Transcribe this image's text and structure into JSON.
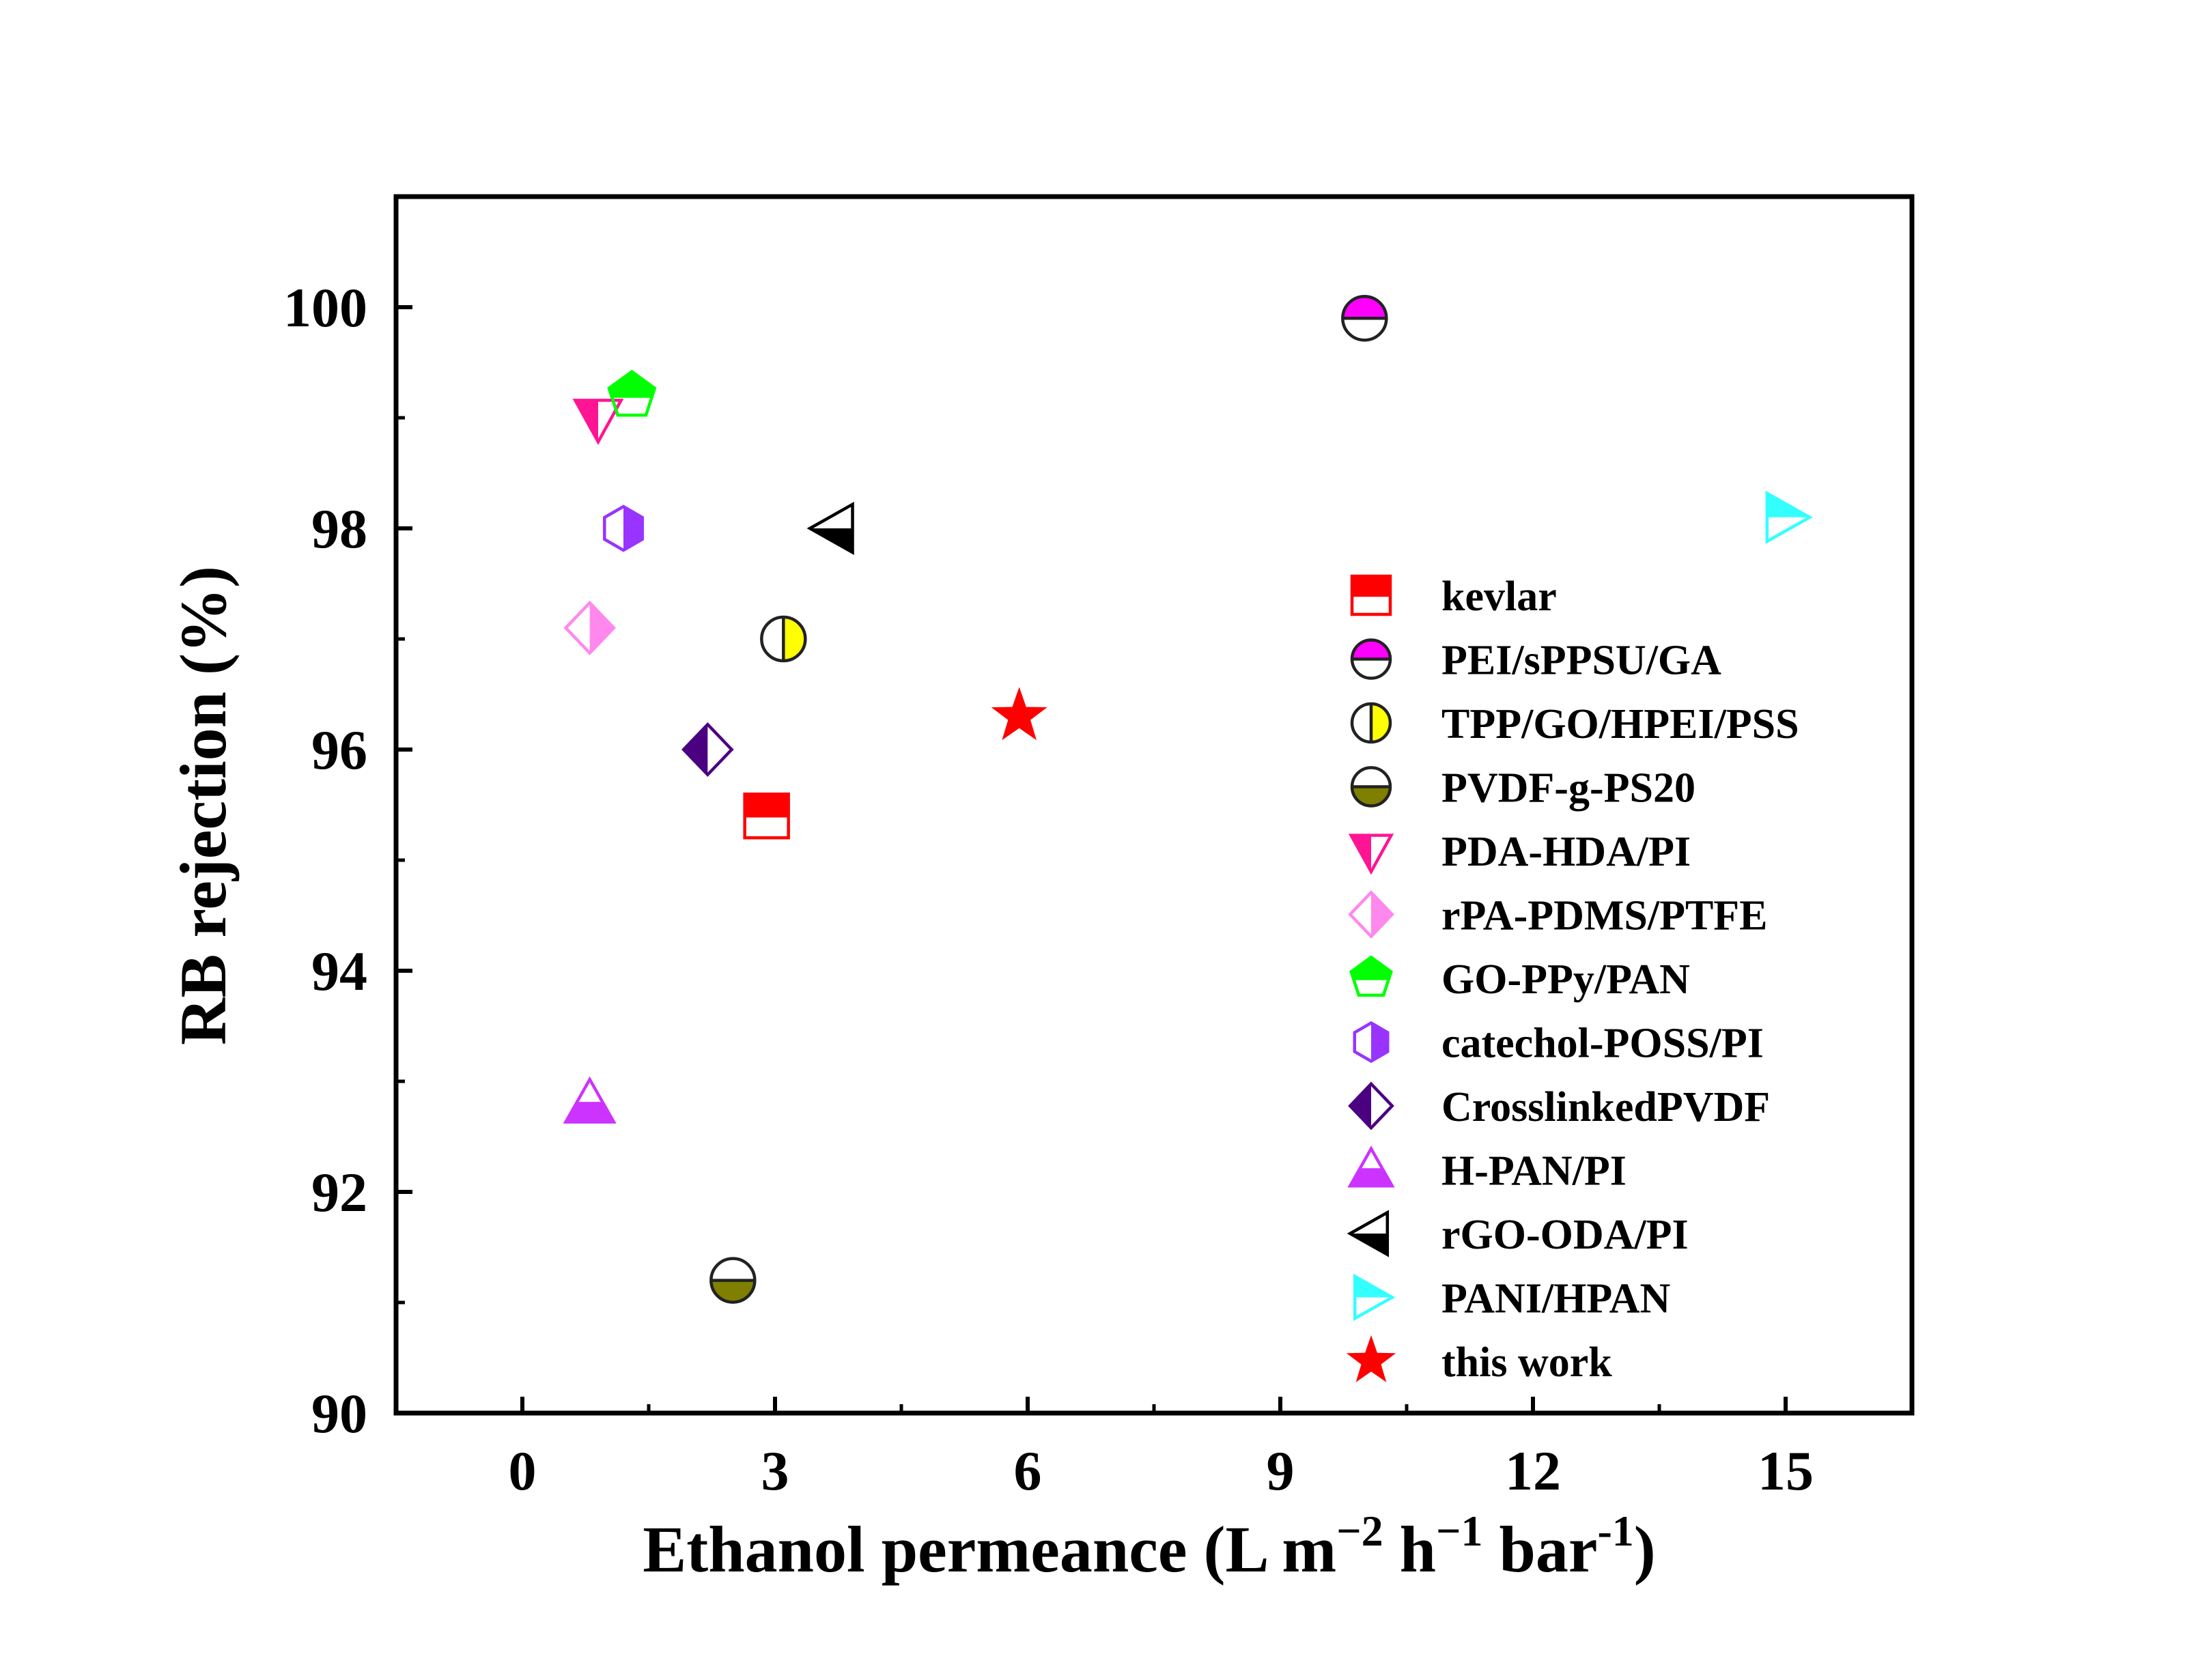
{
  "chart_data": {
    "type": "scatter",
    "xlabel": "Ethanol permeance (L m−2 h−1 bar-1)",
    "xlabel_parts": {
      "main": "Ethanol permeance (L m",
      "sup1": "−2",
      "mid1": " h",
      "sup2": "−1",
      "mid2": " bar",
      "sup3": "-1",
      "end": ")"
    },
    "ylabel": "RB rejection (%)",
    "xlim": [
      -1.5,
      16.5
    ],
    "ylim": [
      90,
      101
    ],
    "xticks": [
      {
        "value": 0,
        "label": "0"
      },
      {
        "value": 3,
        "label": "3"
      },
      {
        "value": 6,
        "label": "6"
      },
      {
        "value": 9,
        "label": "9"
      },
      {
        "value": 12,
        "label": "12"
      },
      {
        "value": 15,
        "label": "15"
      }
    ],
    "yticks": [
      {
        "value": 90,
        "label": "90"
      },
      {
        "value": 92,
        "label": "92"
      },
      {
        "value": 94,
        "label": "94"
      },
      {
        "value": 96,
        "label": "96"
      },
      {
        "value": 98,
        "label": "98"
      },
      {
        "value": 100,
        "label": "100"
      }
    ],
    "grid": false,
    "legend_position": "right",
    "series": [
      {
        "name": "kevlar",
        "marker": "square-top",
        "color": "#ff0000",
        "x": 2.9,
        "y": 95.4
      },
      {
        "name": "PEI/sPPSU/GA",
        "marker": "circle-top",
        "color": "#ff00ff",
        "x": 10.0,
        "y": 99.9
      },
      {
        "name": "TPP/GO/HPEI/PSS",
        "marker": "circle-right",
        "color": "#ffff00",
        "x": 3.1,
        "y": 97.0
      },
      {
        "name": "PVDF-g-PS20",
        "marker": "circle-bottom",
        "color": "#808000",
        "x": 2.5,
        "y": 91.2
      },
      {
        "name": "PDA-HDA/PI",
        "marker": "triangle-down-left",
        "color": "#ff1493",
        "x": 0.9,
        "y": 99.0
      },
      {
        "name": "rPA-PDMS/PTFE",
        "marker": "diamond-right",
        "color": "#ff88ee",
        "x": 0.8,
        "y": 97.1
      },
      {
        "name": "GO-PPy/PAN",
        "marker": "pentagon-top",
        "color": "#00ff00",
        "x": 1.3,
        "y": 99.2
      },
      {
        "name": "catechol-POSS/PI",
        "marker": "hexagon-right",
        "color": "#9933ff",
        "x": 1.2,
        "y": 98.0
      },
      {
        "name": "CrosslinkedPVDF",
        "marker": "diamond-left",
        "color": "#4b0082",
        "x": 2.2,
        "y": 96.0
      },
      {
        "name": "H-PAN/PI",
        "marker": "triangle-up-bottom",
        "color": "#cc33ff",
        "x": 0.8,
        "y": 92.8
      },
      {
        "name": "rGO-ODA/PI",
        "marker": "triangle-left-bottom",
        "color": "#000000",
        "x": 3.7,
        "y": 98.0
      },
      {
        "name": "PANI/HPAN",
        "marker": "triangle-right-top",
        "color": "#33ffff",
        "x": 15.0,
        "y": 98.1
      },
      {
        "name": "this work",
        "marker": "star",
        "color": "#ff0000",
        "x": 5.9,
        "y": 96.3
      }
    ]
  }
}
